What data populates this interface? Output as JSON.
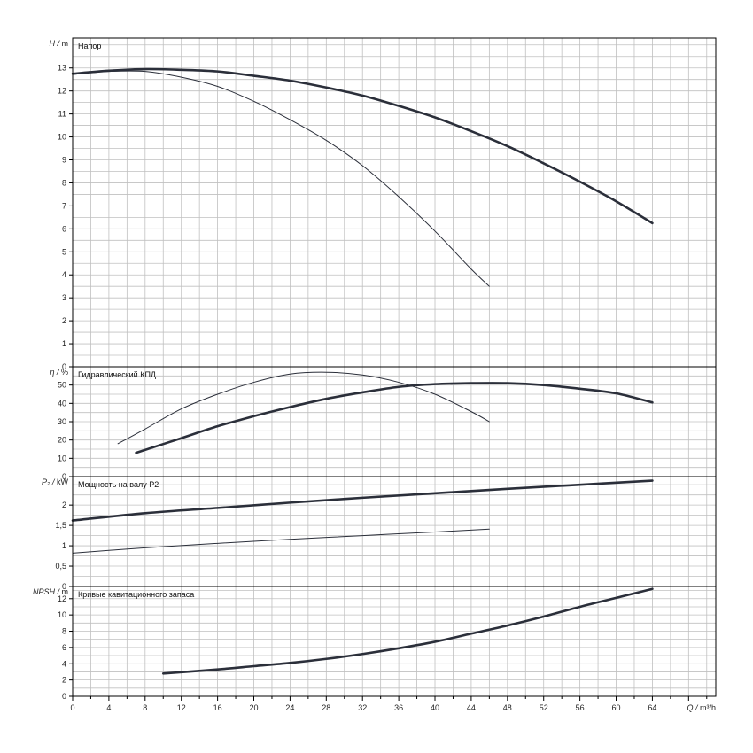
{
  "chart_data": [
    {
      "type": "line",
      "title": "Напор",
      "ylabel_symbol": "H",
      "ylabel_unit": "m",
      "xlabel_symbol": "Q",
      "xlabel_unit": "m³/h",
      "xlim": [
        0,
        71
      ],
      "ylim": [
        0,
        14.3
      ],
      "yticks": [
        0,
        1,
        2,
        3,
        4,
        5,
        6,
        7,
        8,
        9,
        10,
        11,
        12,
        13
      ],
      "series": [
        {
          "weight": "thick",
          "color": "#2b2f3a",
          "x": [
            0,
            4,
            8,
            12,
            16,
            20,
            24,
            28,
            32,
            36,
            40,
            44,
            48,
            52,
            56,
            60,
            64
          ],
          "y": [
            12.75,
            12.88,
            12.95,
            12.92,
            12.85,
            12.66,
            12.45,
            12.15,
            11.8,
            11.35,
            10.85,
            10.25,
            9.6,
            8.85,
            8.05,
            7.2,
            6.25
          ]
        },
        {
          "weight": "thin",
          "color": "#2b2f3a",
          "x": [
            0,
            4,
            8,
            12,
            16,
            20,
            24,
            28,
            32,
            36,
            40,
            44,
            46
          ],
          "y": [
            12.72,
            12.85,
            12.85,
            12.6,
            12.2,
            11.55,
            10.75,
            9.85,
            8.75,
            7.4,
            5.9,
            4.25,
            3.5
          ]
        }
      ]
    },
    {
      "type": "line",
      "title": "Гидравлический КПД",
      "ylabel_symbol": "η",
      "ylabel_unit": "%",
      "xlim": [
        0,
        71
      ],
      "ylim": [
        0,
        60
      ],
      "yticks": [
        0,
        10,
        20,
        30,
        40,
        50
      ],
      "series": [
        {
          "weight": "thick",
          "color": "#2b2f3a",
          "x": [
            7,
            12,
            16,
            20,
            24,
            28,
            32,
            36,
            40,
            44,
            48,
            52,
            56,
            60,
            64
          ],
          "y": [
            13,
            21,
            27.5,
            33,
            38,
            42.5,
            46,
            49,
            50.5,
            51,
            51,
            50,
            48,
            45.5,
            40.5
          ]
        },
        {
          "weight": "thin",
          "color": "#2b2f3a",
          "x": [
            5,
            8,
            12,
            16,
            20,
            24,
            28,
            32,
            36,
            40,
            44,
            46
          ],
          "y": [
            18,
            26,
            37,
            45,
            51.5,
            56,
            57,
            55.5,
            51.5,
            45,
            35.5,
            30
          ]
        }
      ]
    },
    {
      "type": "line",
      "title": "Мощность на валу P2",
      "ylabel_symbol": "P₂",
      "ylabel_unit": "kW",
      "xlim": [
        0,
        71
      ],
      "ylim": [
        0,
        2.7
      ],
      "yticks": [
        0,
        0.5,
        1,
        1.5,
        2
      ],
      "ytick_labels": [
        "0",
        "0,5",
        "1",
        "1,5",
        "2"
      ],
      "series": [
        {
          "weight": "thick",
          "color": "#2b2f3a",
          "x": [
            0,
            8,
            16,
            24,
            32,
            40,
            48,
            56,
            64
          ],
          "y": [
            1.62,
            1.8,
            1.93,
            2.06,
            2.18,
            2.29,
            2.4,
            2.5,
            2.6
          ]
        },
        {
          "weight": "thin",
          "color": "#2b2f3a",
          "x": [
            0,
            8,
            16,
            24,
            32,
            40,
            46
          ],
          "y": [
            0.82,
            0.95,
            1.06,
            1.16,
            1.25,
            1.34,
            1.41
          ]
        }
      ]
    },
    {
      "type": "line",
      "title": "Кривые кавитационного запаса",
      "ylabel_symbol": "NPSH",
      "ylabel_unit": "m",
      "xlabel_symbol": "Q",
      "xlabel_unit": "m³/h",
      "xlim": [
        0,
        71
      ],
      "ylim": [
        0,
        13.5
      ],
      "yticks": [
        0,
        2,
        4,
        6,
        8,
        10,
        12
      ],
      "xticks": [
        0,
        4,
        8,
        12,
        16,
        20,
        24,
        28,
        32,
        36,
        40,
        44,
        48,
        52,
        56,
        60,
        64
      ],
      "series": [
        {
          "weight": "thick",
          "color": "#2b2f3a",
          "x": [
            10,
            16,
            20,
            24,
            28,
            32,
            36,
            40,
            44,
            48,
            52,
            56,
            60,
            64
          ],
          "y": [
            2.8,
            3.3,
            3.7,
            4.1,
            4.6,
            5.2,
            5.9,
            6.7,
            7.7,
            8.7,
            9.8,
            11,
            12.1,
            13.2
          ]
        }
      ]
    }
  ]
}
